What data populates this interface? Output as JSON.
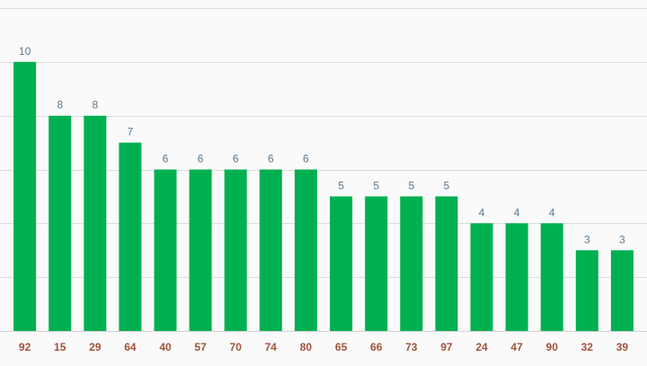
{
  "chart_data": {
    "type": "bar",
    "categories": [
      "92",
      "15",
      "29",
      "64",
      "40",
      "57",
      "70",
      "74",
      "80",
      "65",
      "66",
      "73",
      "97",
      "24",
      "47",
      "90",
      "32",
      "39"
    ],
    "values": [
      10,
      8,
      8,
      7,
      6,
      6,
      6,
      6,
      6,
      5,
      5,
      5,
      5,
      4,
      4,
      4,
      3,
      3
    ],
    "title": "",
    "xlabel": "",
    "ylabel": "",
    "ylim": [
      0,
      12
    ],
    "grid": true,
    "legend": "none",
    "colors": {
      "bar": "#00b050",
      "value_label": "#5a7890",
      "category_label": "#a0523a",
      "grid": "#dcdcdc",
      "background": "#fafafa"
    }
  }
}
